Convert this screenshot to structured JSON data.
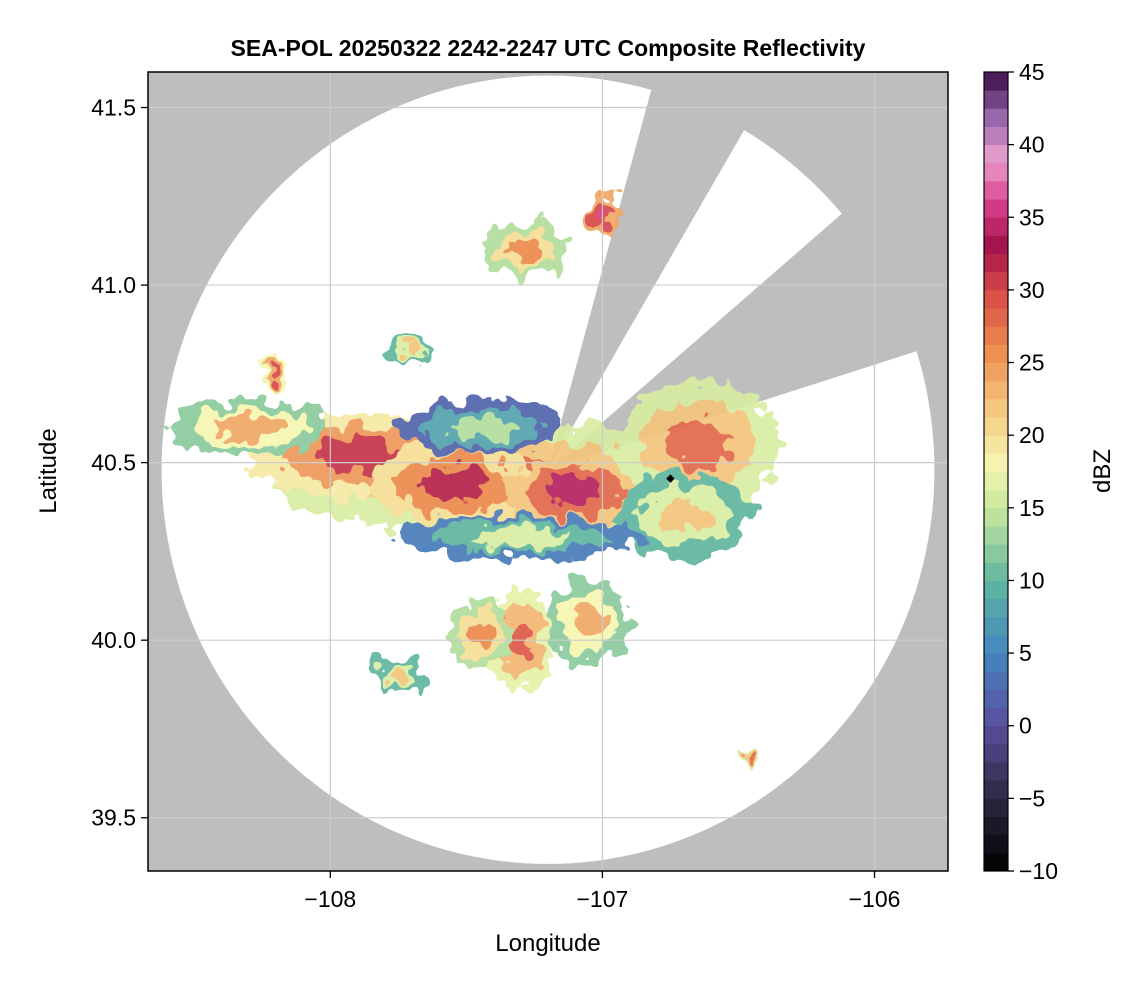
{
  "chart_data": {
    "type": "heatmap",
    "title": "SEA-POL 20250322 2242-2247 UTC Composite Reflectivity",
    "xlabel": "Longitude",
    "ylabel": "Latitude",
    "xlim": [
      -108.67,
      -105.73
    ],
    "ylim": [
      39.35,
      41.6
    ],
    "xticks": [
      -108,
      -107,
      -106
    ],
    "xtick_labels": [
      "−108",
      "−107",
      "−106"
    ],
    "yticks": [
      39.5,
      40.0,
      40.5,
      41.0,
      41.5
    ],
    "ytick_labels": [
      "39.5",
      "40.0",
      "40.5",
      "41.0",
      "41.5"
    ],
    "grid": true,
    "radar": {
      "center_lon": -107.2,
      "center_lat": 40.48,
      "range_lon": 1.42,
      "range_lat": 1.11,
      "blocked_sectors_deg": [
        [
          16,
          30
        ],
        [
          50,
          72
        ]
      ],
      "marker_lon": -106.75,
      "marker_lat": 40.455
    },
    "echo_regions": [
      {
        "lon": -107.3,
        "lat": 40.45,
        "rlon": 0.9,
        "rlat": 0.16,
        "dbz": 24
      },
      {
        "lon": -107.9,
        "lat": 40.52,
        "rlon": 0.4,
        "rlat": 0.12,
        "dbz": 27
      },
      {
        "lon": -107.55,
        "lat": 40.44,
        "rlon": 0.3,
        "rlat": 0.12,
        "dbz": 28
      },
      {
        "lon": -107.1,
        "lat": 40.42,
        "rlon": 0.25,
        "rlat": 0.1,
        "dbz": 30
      },
      {
        "lon": -106.65,
        "lat": 40.55,
        "rlon": 0.3,
        "rlat": 0.18,
        "dbz": 24
      },
      {
        "lon": -106.7,
        "lat": 40.35,
        "rlon": 0.25,
        "rlat": 0.12,
        "dbz": 18
      },
      {
        "lon": -108.3,
        "lat": 40.6,
        "rlon": 0.3,
        "rlat": 0.08,
        "dbz": 20
      },
      {
        "lon": -107.45,
        "lat": 40.6,
        "rlon": 0.3,
        "rlat": 0.08,
        "dbz": 10
      },
      {
        "lon": -107.3,
        "lat": 40.29,
        "rlon": 0.45,
        "rlat": 0.06,
        "dbz": 12
      },
      {
        "lon": -107.3,
        "lat": 40.0,
        "rlon": 0.12,
        "rlat": 0.15,
        "dbz": 25
      },
      {
        "lon": -107.45,
        "lat": 40.02,
        "rlon": 0.12,
        "rlat": 0.1,
        "dbz": 22
      },
      {
        "lon": -107.05,
        "lat": 40.05,
        "rlon": 0.15,
        "rlat": 0.12,
        "dbz": 20
      },
      {
        "lon": -107.28,
        "lat": 41.1,
        "rlon": 0.15,
        "rlat": 0.08,
        "dbz": 22
      },
      {
        "lon": -107.0,
        "lat": 41.2,
        "rlon": 0.06,
        "rlat": 0.05,
        "dbz": 32
      },
      {
        "lon": -107.7,
        "lat": 40.82,
        "rlon": 0.08,
        "rlat": 0.04,
        "dbz": 18
      },
      {
        "lon": -108.2,
        "lat": 40.75,
        "rlon": 0.05,
        "rlat": 0.04,
        "dbz": 26
      },
      {
        "lon": -107.75,
        "lat": 39.9,
        "rlon": 0.1,
        "rlat": 0.05,
        "dbz": 18
      },
      {
        "lon": -106.45,
        "lat": 39.66,
        "rlon": 0.03,
        "rlat": 0.02,
        "dbz": 24
      }
    ],
    "colorbar": {
      "label": "dBZ",
      "min": -10,
      "max": 45,
      "ticks": [
        -10,
        -5,
        0,
        5,
        10,
        15,
        20,
        25,
        30,
        35,
        40,
        45
      ],
      "tick_labels": [
        "−10",
        "−5",
        "0",
        "5",
        "10",
        "15",
        "20",
        "25",
        "30",
        "35",
        "40",
        "45"
      ],
      "stops": [
        {
          "v": -10,
          "c": "#000000"
        },
        {
          "v": -5,
          "c": "#2b2840"
        },
        {
          "v": 0,
          "c": "#5b4e9e"
        },
        {
          "v": 5,
          "c": "#4386c0"
        },
        {
          "v": 10,
          "c": "#61b6a0"
        },
        {
          "v": 15,
          "c": "#c9e89c"
        },
        {
          "v": 18,
          "c": "#f6f6b0"
        },
        {
          "v": 22,
          "c": "#f4c57c"
        },
        {
          "v": 26,
          "c": "#ec8a4e"
        },
        {
          "v": 30,
          "c": "#d84848"
        },
        {
          "v": 33,
          "c": "#a3124a"
        },
        {
          "v": 36,
          "c": "#d9408e"
        },
        {
          "v": 39,
          "c": "#eaa1cf"
        },
        {
          "v": 42,
          "c": "#9464aa"
        },
        {
          "v": 45,
          "c": "#3c0a46"
        }
      ]
    }
  },
  "colors": {
    "no_coverage": "#bebebe",
    "coverage": "#ffffff",
    "grid": "#cccccc",
    "marker": "#000000"
  }
}
